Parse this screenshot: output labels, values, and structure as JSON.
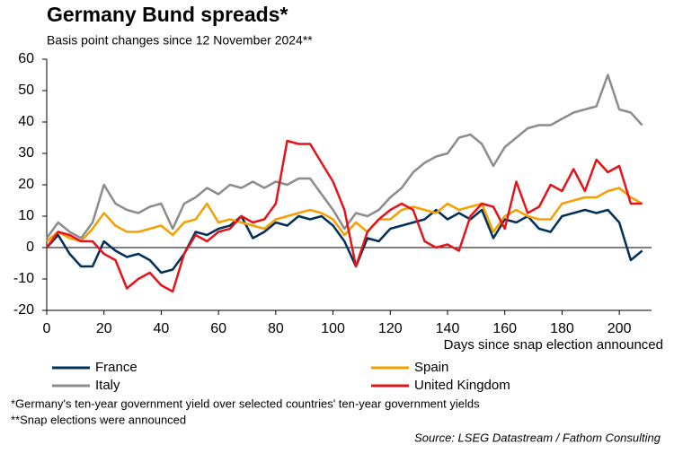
{
  "chart_data": {
    "type": "line",
    "title": "Germany Bund spreads*",
    "subtitle": "Basis point changes since 12 November 2024**",
    "x_label": "Days since snap election announced",
    "footnotes": [
      "*Germany's ten-year government yield over selected countries' ten-year government yields",
      "**Snap elections were announced"
    ],
    "source": "Source: LSEG Datastream / Fathom Consulting",
    "x": [
      0,
      4,
      8,
      12,
      16,
      20,
      24,
      28,
      32,
      36,
      40,
      44,
      48,
      52,
      56,
      60,
      64,
      68,
      72,
      76,
      80,
      84,
      88,
      92,
      96,
      100,
      104,
      108,
      112,
      116,
      120,
      124,
      128,
      132,
      136,
      140,
      144,
      148,
      152,
      156,
      160,
      164,
      168,
      172,
      176,
      180,
      184,
      188,
      192,
      196,
      200,
      204,
      208
    ],
    "series": [
      {
        "name": "France",
        "color": "#003057",
        "values": [
          0,
          4,
          -2,
          -6,
          -6,
          2,
          -1,
          -3,
          -2,
          -4,
          -8,
          -7,
          -2,
          5,
          4,
          6,
          7,
          10,
          3,
          5,
          8,
          7,
          10,
          9,
          10,
          7,
          2,
          -6,
          3,
          2,
          6,
          7,
          8,
          9,
          12,
          9,
          11,
          9,
          12,
          3,
          9,
          8,
          10,
          6,
          5,
          10,
          11,
          12,
          11,
          12,
          8,
          -4,
          -1
        ]
      },
      {
        "name": "Spain",
        "color": "#f5a000",
        "values": [
          2,
          5,
          3,
          2,
          6,
          11,
          7,
          5,
          5,
          6,
          7,
          4,
          8,
          9,
          14,
          8,
          9,
          8,
          7,
          6,
          9,
          10,
          11,
          12,
          11,
          9,
          4,
          8,
          5,
          9,
          9,
          12,
          13,
          12,
          11,
          14,
          12,
          13,
          14,
          5,
          10,
          12,
          10,
          9,
          9,
          14,
          15,
          16,
          16,
          18,
          19,
          16,
          14
        ]
      },
      {
        "name": "Italy",
        "color": "#8c8c8c",
        "values": [
          3,
          8,
          5,
          3,
          8,
          20,
          14,
          12,
          11,
          13,
          14,
          6,
          14,
          16,
          19,
          17,
          20,
          19,
          21,
          19,
          21,
          20,
          22,
          22,
          17,
          12,
          6,
          11,
          10,
          12,
          16,
          19,
          24,
          27,
          29,
          30,
          35,
          36,
          33,
          26,
          32,
          35,
          38,
          39,
          39,
          41,
          43,
          44,
          45,
          55,
          44,
          43,
          39
        ]
      },
      {
        "name": "United Kingdom",
        "color": "#e4141b",
        "values": [
          0,
          5,
          4,
          2,
          2,
          -2,
          -4,
          -13,
          -10,
          -8,
          -12,
          -14,
          -2,
          4,
          2,
          5,
          6,
          10,
          8,
          9,
          14,
          34,
          33,
          33,
          27,
          21,
          12,
          -6,
          5,
          9,
          12,
          14,
          12,
          2,
          0,
          1,
          -1,
          10,
          14,
          13,
          6,
          21,
          11,
          13,
          20,
          18,
          25,
          18,
          28,
          24,
          26,
          14,
          14
        ]
      }
    ],
    "xlim": [
      0,
      210
    ],
    "xticks": [
      0,
      20,
      40,
      60,
      80,
      100,
      120,
      140,
      160,
      180,
      200
    ],
    "ylim": [
      -20,
      60
    ],
    "yticks": [
      -20,
      -10,
      0,
      10,
      20,
      30,
      40,
      50,
      60
    ]
  }
}
